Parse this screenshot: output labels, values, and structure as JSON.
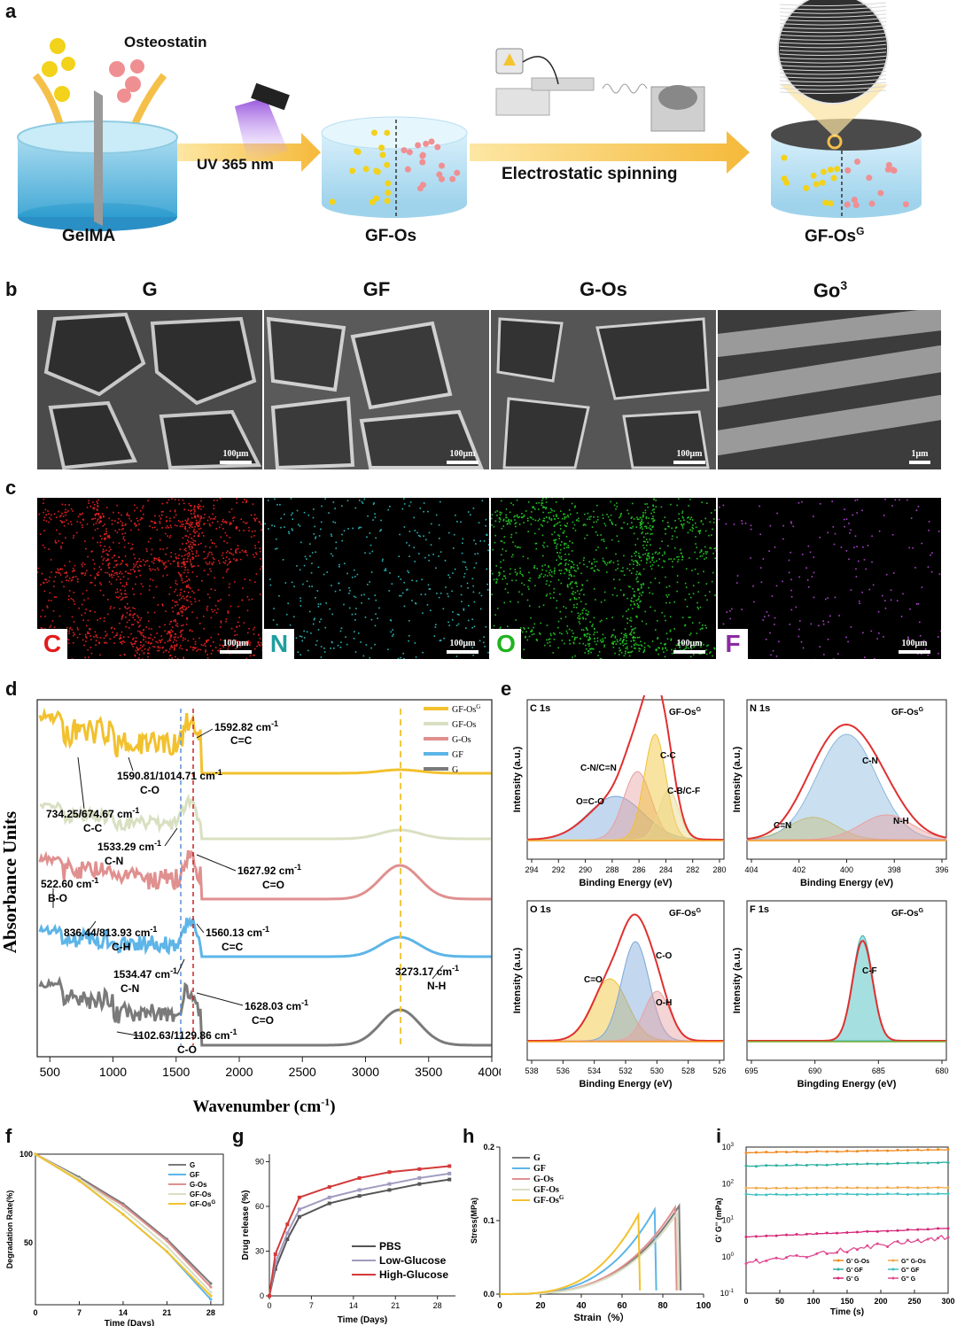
{
  "panel_letters": {
    "a": "a",
    "b": "b",
    "c": "c",
    "d": "d",
    "e": "e",
    "f": "f",
    "g": "g",
    "h": "h",
    "i": "i"
  },
  "panel_a": {
    "osteostatin": "Osteostatin",
    "gelma": "GelMA",
    "uv": "UV 365 nm",
    "gfos": "GF-Os",
    "electro": "Electrostatic spinning",
    "gfosg": "GF-Os",
    "gfosg_sup": "G"
  },
  "panel_b": {
    "titles": [
      "G",
      "GF",
      "G-Os",
      "Go"
    ],
    "go_sup": "3",
    "scales": [
      "100μm",
      "100μm",
      "100μm",
      "1μm"
    ]
  },
  "panel_c": {
    "elements": [
      {
        "symbol": "C",
        "color": "#e11b1b",
        "scale": "100μm"
      },
      {
        "symbol": "N",
        "color": "#1f9e9e",
        "scale": "100μm"
      },
      {
        "symbol": "O",
        "color": "#1fb31f",
        "scale": "100μm"
      },
      {
        "symbol": "F",
        "color": "#8a2aa0",
        "scale": "100μm"
      }
    ]
  },
  "colors": {
    "GF-OsG": "#f2c12e",
    "GF-Os": "#d9e0c2",
    "G-Os": "#e0908f",
    "GF": "#5db5e8",
    "G": "#7a7a7a",
    "PBS": "#555555",
    "Low-Glucose": "#a09bbf",
    "High-Glucose": "#d33a3a"
  },
  "chart_data": [
    {
      "panel": "d",
      "type": "line",
      "xlabel": "Wavenumber (cm",
      "xlabel_sup": "-1",
      "xlabel_end": ")",
      "ylabel": "Absorbance Units",
      "xlim": [
        400,
        4000
      ],
      "xticks": [
        "500",
        "1000",
        "1500",
        "2000",
        "2500",
        "3000",
        "3500",
        "4000"
      ],
      "legend": [
        "GF-Os",
        "GF-Os",
        "G-Os",
        "GF",
        "G"
      ],
      "legend_sup": "G",
      "annotations": [
        {
          "text": "1592.82 cm",
          "sup": "-1",
          "sub": "C=C"
        },
        {
          "text": "1590.81/1014.71 cm",
          "sup": "-1",
          "sub": "C-O"
        },
        {
          "text": "734.25/674.67 cm",
          "sup": "-1",
          "sub": "C-C"
        },
        {
          "text": "1533.29 cm",
          "sup": "-1",
          "sub": "C-N"
        },
        {
          "text": "1627.92 cm",
          "sup": "-1",
          "sub": "C=O"
        },
        {
          "text": "522.60 cm",
          "sup": "-1",
          "sub": "B-O"
        },
        {
          "text": "836.44/813.93 cm",
          "sup": "-1",
          "sub": "C-H"
        },
        {
          "text": "1560.13 cm",
          "sup": "-1",
          "sub": "C=C"
        },
        {
          "text": "3273.17 cm",
          "sup": "-1",
          "sub": "N-H"
        },
        {
          "text": "1534.47 cm",
          "sup": "-1",
          "sub": "C-N"
        },
        {
          "text": "1628.03 cm",
          "sup": "-1",
          "sub": "C=O"
        },
        {
          "text": "1102.63/1129.86 cm",
          "sup": "-1",
          "sub": "C-O"
        }
      ]
    },
    {
      "panel": "e",
      "type": "line",
      "subplots": [
        {
          "title": "C 1s",
          "tag": "GF-Os",
          "tag_sup": "G",
          "xlabel": "Binding Energy (eV)",
          "ylabel": "Intensity (a.u.)",
          "xticks": [
            "294",
            "292",
            "290",
            "288",
            "286",
            "284",
            "282",
            "280"
          ],
          "peaks": [
            "O=C-O",
            "C-N/C=N",
            "C-C",
            "C-B/C-F"
          ]
        },
        {
          "title": "N 1s",
          "tag": "GF-Os",
          "tag_sup": "G",
          "xlabel": "Binding Energy (eV)",
          "ylabel": "Intensity (a.u.)",
          "xticks": [
            "404",
            "402",
            "400",
            "398",
            "396"
          ],
          "peaks": [
            "C=N",
            "C-N",
            "N-H"
          ]
        },
        {
          "title": "O 1s",
          "tag": "GF-Os",
          "tag_sup": "G",
          "xlabel": "Binding Energy (eV)",
          "ylabel": "Intensity (a.u.)",
          "xticks": [
            "538",
            "536",
            "534",
            "532",
            "530",
            "528",
            "526"
          ],
          "peaks": [
            "C=O",
            "C-O",
            "O-H"
          ]
        },
        {
          "title": "F 1s",
          "tag": "GF-Os",
          "tag_sup": "G",
          "xlabel": "Bingding Energy (eV)",
          "ylabel": "Intensity (a.u.)",
          "xticks": [
            "695",
            "690",
            "685",
            "680"
          ],
          "peaks": [
            "C-F"
          ]
        }
      ]
    },
    {
      "panel": "f",
      "type": "line",
      "xlabel": "Time (Days)",
      "ylabel": "Degradation Rate(%)",
      "xlim": [
        0,
        30
      ],
      "ylim": [
        15,
        100
      ],
      "xticks": [
        "0",
        "7",
        "14",
        "21",
        "28"
      ],
      "yticks": [
        "100",
        "50"
      ],
      "x": [
        0,
        7,
        14,
        21,
        28
      ],
      "series": [
        {
          "name": "G",
          "values": [
            100,
            87,
            72,
            52,
            27
          ]
        },
        {
          "name": "GF",
          "values": [
            100,
            85,
            66,
            45,
            18
          ]
        },
        {
          "name": "G-Os",
          "values": [
            100,
            86,
            71,
            51,
            25
          ]
        },
        {
          "name": "GF-Os",
          "values": [
            100,
            86,
            69,
            48,
            22
          ]
        },
        {
          "name": "GF-Os",
          "sup": "G",
          "values": [
            100,
            85,
            66,
            45,
            20
          ]
        }
      ]
    },
    {
      "panel": "g",
      "type": "line",
      "xlabel": "Time (Days)",
      "ylabel": "Drug release (%)",
      "xlim": [
        0,
        31
      ],
      "ylim": [
        0,
        95
      ],
      "xticks": [
        "0",
        "7",
        "14",
        "21",
        "28"
      ],
      "yticks": [
        "0",
        "30",
        "60",
        "90"
      ],
      "x": [
        0,
        1,
        3,
        5,
        10,
        15,
        20,
        25,
        30
      ],
      "series": [
        {
          "name": "PBS",
          "values": [
            0,
            18,
            38,
            53,
            62,
            67,
            71,
            75,
            78
          ]
        },
        {
          "name": "Low-Glucose",
          "values": [
            0,
            22,
            42,
            58,
            66,
            71,
            75,
            79,
            82
          ]
        },
        {
          "name": "High-Glucose",
          "values": [
            0,
            28,
            48,
            66,
            73,
            79,
            83,
            85,
            87
          ]
        }
      ]
    },
    {
      "panel": "h",
      "type": "line",
      "xlabel": "Strain（%）",
      "ylabel": "Stress(MPa)",
      "xlim": [
        0,
        100
      ],
      "ylim": [
        0,
        0.2
      ],
      "xticks": [
        "0",
        "20",
        "40",
        "60",
        "80",
        "100"
      ],
      "yticks": [
        "0.0",
        "0.1",
        "0.2"
      ],
      "series": [
        {
          "name": "G",
          "break": 88
        },
        {
          "name": "GF",
          "break": 76
        },
        {
          "name": "G-Os",
          "break": 86
        },
        {
          "name": "GF-Os",
          "break": 87
        },
        {
          "name": "GF-Os",
          "sup": "G",
          "break": 68
        }
      ]
    },
    {
      "panel": "i",
      "type": "line",
      "xlabel": "Time (s)",
      "ylabel": "G' G'' (mPa)",
      "xlim": [
        0,
        300
      ],
      "xticks": [
        "0",
        "50",
        "100",
        "150",
        "200",
        "250",
        "300"
      ],
      "yticks": [
        "10-1",
        "100",
        "101",
        "102",
        "103"
      ],
      "yscale": "log",
      "series": [
        {
          "name": "G' G-Os",
          "values_start": 700,
          "values_end": 850
        },
        {
          "name": "G'' G-Os",
          "values_start": 75,
          "values_end": 78
        },
        {
          "name": "G' GF",
          "values_start": 300,
          "values_end": 380
        },
        {
          "name": "G'' GF",
          "values_start": 50,
          "values_end": 52
        },
        {
          "name": "G' G",
          "values_start": 3.5,
          "values_end": 6
        },
        {
          "name": "G'' G",
          "values_start": 0.7,
          "values_end": 3.5
        }
      ],
      "legend": [
        "G' G-Os",
        "G'' G-Os",
        "G' GF",
        "G'' GF",
        "G' G",
        "G'' G"
      ]
    }
  ]
}
